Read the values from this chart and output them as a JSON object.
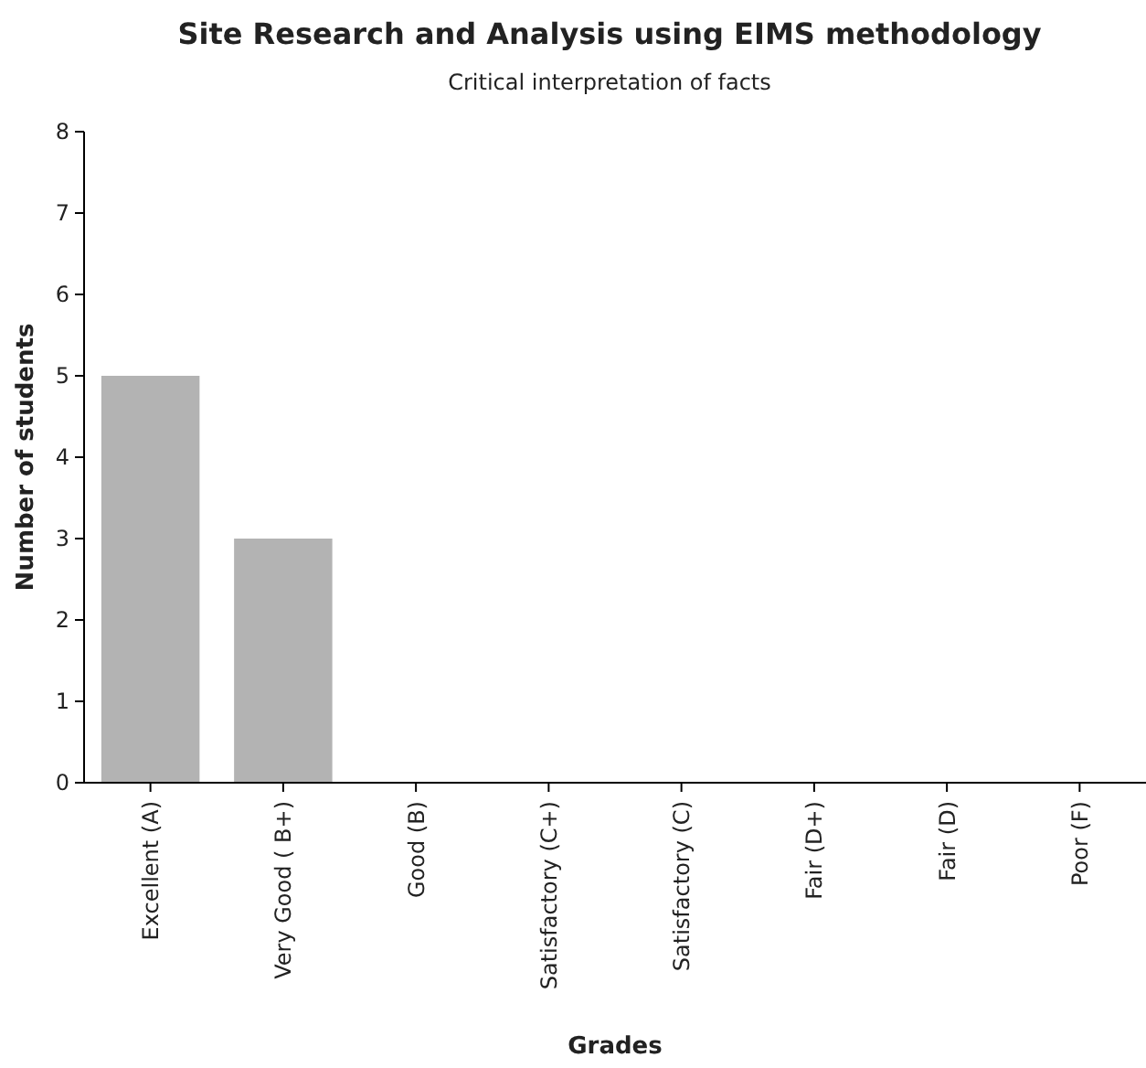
{
  "chart_data": {
    "type": "bar",
    "title": "Site Research and Analysis using EIMS methodology",
    "subtitle": "Critical interpretation of facts",
    "xlabel": "Grades",
    "ylabel": "Number of students",
    "categories": [
      "Excellent (A)",
      "Very Good ( B+)",
      "Good (B)",
      "Satisfactory (C+)",
      "Satisfactory (C)",
      "Fair (D+)",
      "Fair (D)",
      "Poor (F)"
    ],
    "values": [
      5,
      3,
      0,
      0,
      0,
      0,
      0,
      0
    ],
    "color": "#b3b3b3",
    "ylim": [
      0,
      8
    ],
    "yticks": [
      0,
      1,
      2,
      3,
      4,
      5,
      6,
      7,
      8
    ]
  }
}
